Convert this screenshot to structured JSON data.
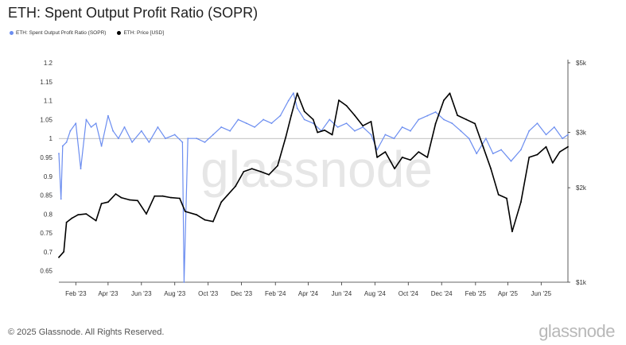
{
  "title": "ETH: Spent Output Profit Ratio (SOPR)",
  "legend": [
    {
      "label": "ETH: Spent Output Profit Ratio (SOPR)",
      "color": "#6b8df0"
    },
    {
      "label": "ETH: Price [USD]",
      "color": "#000000"
    }
  ],
  "watermark": "glassnode",
  "footer": {
    "copyright": "© 2025 Glassnode. All Rights Reserved.",
    "logo": "glassnode"
  },
  "chart_data": {
    "type": "line",
    "title": "ETH: Spent Output Profit Ratio (SOPR)",
    "x_tick_labels": [
      "Feb '23",
      "Apr '23",
      "Jun '23",
      "Aug '23",
      "Oct '23",
      "Dec '23",
      "Feb '24",
      "Apr '24",
      "Jun '24",
      "Aug '24",
      "Oct '24",
      "Dec '24",
      "Feb '25",
      "Apr '25",
      "Jun '25"
    ],
    "x_range": [
      "2023-01-01",
      "2025-07-20"
    ],
    "left_axis": {
      "ticks": [
        "0.65",
        "0.7",
        "0.75",
        "0.8",
        "0.85",
        "0.9",
        "0.95",
        "1",
        "1.05",
        "1.1",
        "1.15",
        "1.2"
      ],
      "range": [
        0.62,
        1.2
      ],
      "reference_line": 1.0
    },
    "right_axis": {
      "scale": "log",
      "ticks": [
        "$1k",
        "$2k",
        "$3k",
        "$5k"
      ],
      "range": [
        1000,
        5000
      ]
    },
    "series": [
      {
        "name": "ETH: Spent Output Profit Ratio (SOPR)",
        "axis": "left",
        "color": "#6b8df0",
        "x": [
          "2023-01-01",
          "2023-01-05",
          "2023-01-08",
          "2023-01-15",
          "2023-01-22",
          "2023-02-01",
          "2023-02-10",
          "2023-02-20",
          "2023-03-01",
          "2023-03-10",
          "2023-03-20",
          "2023-04-01",
          "2023-04-10",
          "2023-04-20",
          "2023-05-01",
          "2023-05-15",
          "2023-06-01",
          "2023-06-15",
          "2023-07-01",
          "2023-07-15",
          "2023-08-01",
          "2023-08-15",
          "2023-08-18",
          "2023-08-25",
          "2023-09-10",
          "2023-09-25",
          "2023-10-10",
          "2023-10-25",
          "2023-11-10",
          "2023-11-25",
          "2023-12-10",
          "2023-12-25",
          "2024-01-10",
          "2024-01-25",
          "2024-02-10",
          "2024-02-25",
          "2024-03-05",
          "2024-03-12",
          "2024-03-25",
          "2024-04-10",
          "2024-04-25",
          "2024-05-10",
          "2024-05-25",
          "2024-06-10",
          "2024-06-25",
          "2024-07-10",
          "2024-07-25",
          "2024-08-05",
          "2024-08-20",
          "2024-09-05",
          "2024-09-20",
          "2024-10-05",
          "2024-10-20",
          "2024-11-05",
          "2024-11-20",
          "2024-12-05",
          "2024-12-20",
          "2025-01-05",
          "2025-01-20",
          "2025-02-03",
          "2025-02-20",
          "2025-03-05",
          "2025-03-20",
          "2025-04-07",
          "2025-04-25",
          "2025-05-10",
          "2025-05-25",
          "2025-06-10",
          "2025-06-25",
          "2025-07-10",
          "2025-07-20"
        ],
        "values": [
          0.96,
          0.84,
          0.98,
          0.99,
          1.02,
          1.04,
          0.92,
          1.05,
          1.03,
          1.04,
          0.98,
          1.06,
          1.02,
          1.0,
          1.03,
          0.99,
          1.02,
          0.99,
          1.03,
          1.0,
          1.01,
          0.99,
          0.62,
          1.0,
          1.0,
          0.99,
          1.01,
          1.03,
          1.02,
          1.05,
          1.04,
          1.03,
          1.05,
          1.04,
          1.06,
          1.1,
          1.12,
          1.08,
          1.05,
          1.04,
          1.02,
          1.05,
          1.03,
          1.04,
          1.02,
          1.03,
          1.01,
          0.97,
          1.01,
          1.0,
          1.03,
          1.02,
          1.05,
          1.06,
          1.07,
          1.05,
          1.04,
          1.02,
          1.0,
          0.96,
          1.0,
          0.96,
          0.97,
          0.94,
          0.97,
          1.02,
          1.04,
          1.01,
          1.03,
          1.0,
          1.01
        ]
      },
      {
        "name": "ETH: Price [USD]",
        "axis": "right",
        "color": "#000000",
        "x": [
          "2023-01-01",
          "2023-01-10",
          "2023-01-15",
          "2023-01-25",
          "2023-02-05",
          "2023-02-20",
          "2023-03-10",
          "2023-03-20",
          "2023-04-01",
          "2023-04-15",
          "2023-04-25",
          "2023-05-10",
          "2023-05-25",
          "2023-06-10",
          "2023-06-25",
          "2023-07-10",
          "2023-07-25",
          "2023-08-10",
          "2023-08-20",
          "2023-09-10",
          "2023-09-25",
          "2023-10-10",
          "2023-10-25",
          "2023-11-05",
          "2023-11-20",
          "2023-12-05",
          "2023-12-20",
          "2024-01-05",
          "2024-01-20",
          "2024-02-05",
          "2024-02-20",
          "2024-03-01",
          "2024-03-12",
          "2024-03-25",
          "2024-04-10",
          "2024-04-18",
          "2024-05-01",
          "2024-05-15",
          "2024-05-27",
          "2024-06-10",
          "2024-06-25",
          "2024-07-10",
          "2024-07-25",
          "2024-08-05",
          "2024-08-20",
          "2024-09-06",
          "2024-09-20",
          "2024-10-05",
          "2024-10-20",
          "2024-11-05",
          "2024-11-20",
          "2024-12-05",
          "2024-12-16",
          "2024-12-30",
          "2025-01-15",
          "2025-01-31",
          "2025-02-15",
          "2025-03-01",
          "2025-03-15",
          "2025-03-30",
          "2025-04-09",
          "2025-04-25",
          "2025-05-10",
          "2025-05-25",
          "2025-06-10",
          "2025-06-22",
          "2025-07-05",
          "2025-07-20"
        ],
        "values": [
          1200,
          1250,
          1550,
          1600,
          1640,
          1650,
          1570,
          1780,
          1800,
          1910,
          1860,
          1830,
          1820,
          1650,
          1880,
          1880,
          1860,
          1850,
          1680,
          1640,
          1580,
          1560,
          1800,
          1890,
          2020,
          2250,
          2300,
          2250,
          2200,
          2350,
          2900,
          3400,
          4000,
          3500,
          3300,
          3000,
          3050,
          2950,
          3800,
          3650,
          3400,
          3150,
          3250,
          2500,
          2600,
          2300,
          2500,
          2450,
          2600,
          2500,
          3200,
          3800,
          4000,
          3400,
          3300,
          3200,
          2700,
          2300,
          1900,
          1850,
          1450,
          1800,
          2500,
          2550,
          2700,
          2400,
          2600,
          2700
        ]
      }
    ]
  }
}
